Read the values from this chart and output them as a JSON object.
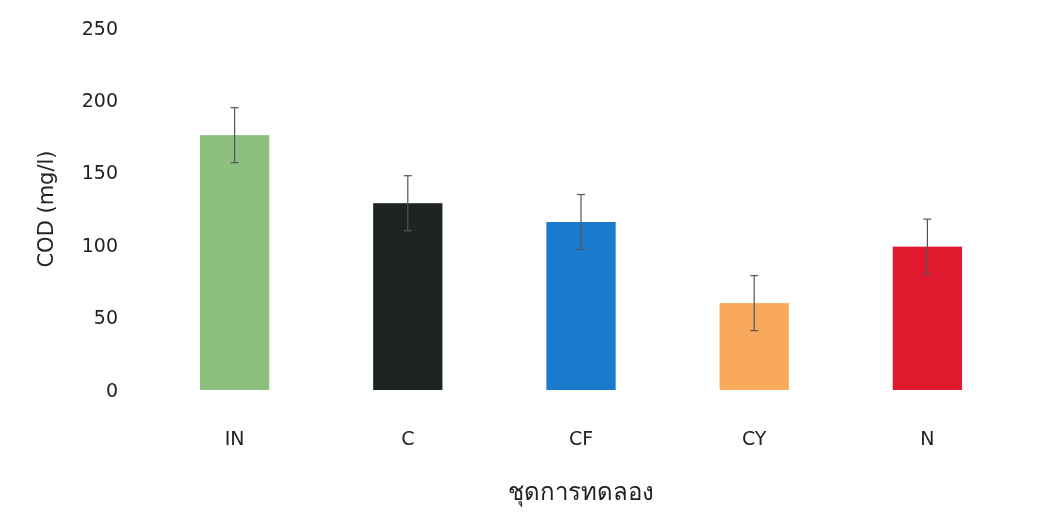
{
  "chart_data": {
    "type": "bar",
    "xlabel": "ชุดการทดลอง",
    "ylabel": "COD (mg/l)",
    "categories": [
      "IN",
      "C",
      "CF",
      "CY",
      "N"
    ],
    "values": [
      176,
      129,
      116,
      60,
      99
    ],
    "colors": [
      "#8dbf7f",
      "#1e2420",
      "#1a7acc",
      "#f9a95b",
      "#e0192e"
    ],
    "errors": [
      19,
      19,
      19,
      19,
      19
    ],
    "ylim": [
      0,
      250
    ],
    "yticks": [
      0,
      50,
      100,
      150,
      200,
      250
    ],
    "grid": false
  }
}
